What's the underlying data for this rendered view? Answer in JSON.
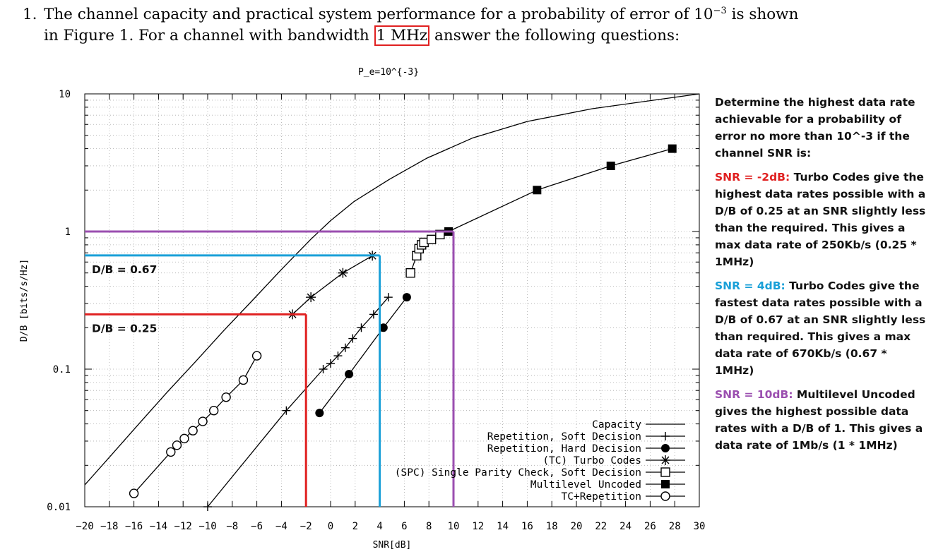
{
  "question": {
    "number": "1.",
    "line1_a": "The channel capacity and practical system performance for a probability of error of ",
    "power_base": "10",
    "power_exp": "−3",
    "line1_b": " is shown",
    "line2_a": "in Figure 1. For a channel with bandwidth ",
    "bandwidth": "1 MHz",
    "line2_b": " answer the following questions:"
  },
  "notes": {
    "intro": "Determine the highest data rate achievable for a probability of error no more than 10^-3 if the channel SNR is:",
    "n1_head": "SNR = -2dB:",
    "n1_body": " Turbo Codes give the highest data rates possible with a D/B of 0.25 at an SNR slightly less than the required. This gives a max data rate of 250Kb/s (0.25 * 1MHz)",
    "n2_head": "SNR = 4dB:",
    "n2_body": " Turbo Codes give the fastest data rates possible with a D/B of 0.67 at an SNR slightly less than required. This gives a max data rate of 670Kb/s (0.67 * 1MHz)",
    "n3_head": "SNR = 10dB:",
    "n3_body": " Multilevel Uncoded gives the highest possible data rates with a D/B of 1. This gives a data rate of 1Mb/s (1 * 1MHz)"
  },
  "colors": {
    "red": "#e02020",
    "blue": "#1aa0d8",
    "purple": "#9b4fb0",
    "ink": "#000000"
  },
  "chart_data": {
    "type": "line",
    "title": "P_e=10^{-3}",
    "xlabel": "SNR[dB]",
    "ylabel": "D/B [bits/s/Hz]",
    "xlim": [
      -20,
      30
    ],
    "ylim": [
      0.01,
      10
    ],
    "yscale": "log",
    "grid": true,
    "legend_position": "bottom-right",
    "x_ticks": [
      -20,
      -18,
      -16,
      -14,
      -12,
      -10,
      -8,
      -6,
      -4,
      -2,
      0,
      2,
      4,
      6,
      8,
      10,
      12,
      14,
      16,
      18,
      20,
      22,
      24,
      26,
      28,
      30
    ],
    "x_tick_labels": [
      "−20",
      "−18",
      "−16",
      "−14",
      "−12",
      "−10",
      "−8",
      "−6",
      "−4",
      "−2",
      "0",
      "2",
      "4",
      "6",
      "8",
      "10",
      "12",
      "14",
      "16",
      "18",
      "20",
      "22",
      "24",
      "26",
      "28",
      "30"
    ],
    "y_ticks": [
      0.01,
      0.1,
      1,
      10
    ],
    "y_tick_labels": [
      "0.01",
      "0.1",
      "1",
      "10"
    ],
    "series": [
      {
        "name": "Capacity",
        "marker": "none",
        "x": [
          -20,
          -17.8,
          -15.6,
          -13.3,
          -11.0,
          -8.7,
          -6.3,
          -4.0,
          -1.6,
          0,
          1.9,
          4.8,
          7.8,
          11.6,
          16.0,
          21.3,
          30.0
        ],
        "y": [
          0.0144,
          0.024,
          0.04,
          0.068,
          0.113,
          0.19,
          0.32,
          0.53,
          0.88,
          1.2,
          1.65,
          2.4,
          3.4,
          4.8,
          6.3,
          7.8,
          10.0
        ]
      },
      {
        "name": "Repetition, Soft Decision",
        "marker": "plus",
        "x": [
          -10.0,
          -3.6,
          -0.6,
          0,
          0.6,
          1.2,
          1.8,
          2.5,
          3.5,
          4.7
        ],
        "y": [
          0.01,
          0.05,
          0.1,
          0.11,
          0.125,
          0.143,
          0.167,
          0.2,
          0.25,
          0.333
        ]
      },
      {
        "name": "Repetition, Hard Decision",
        "marker": "filled-circle",
        "x": [
          -0.9,
          1.5,
          4.3,
          6.2
        ],
        "y": [
          0.048,
          0.092,
          0.2,
          0.333
        ]
      },
      {
        "name": "(TC) Turbo Codes",
        "marker": "star",
        "x": [
          -3.1,
          -1.6,
          1.0,
          3.4
        ],
        "y": [
          0.25,
          0.333,
          0.5,
          0.667
        ]
      },
      {
        "name": "(SPC) Single Parity Check, Soft Decision",
        "marker": "open-square",
        "x": [
          6.5,
          7.0,
          7.2,
          7.4,
          7.6,
          8.2,
          8.9
        ],
        "y": [
          0.5,
          0.667,
          0.75,
          0.8,
          0.833,
          0.875,
          0.95
        ]
      },
      {
        "name": "Multilevel Uncoded",
        "marker": "filled-square",
        "x": [
          9.6,
          16.8,
          22.8,
          27.8
        ],
        "y": [
          1,
          2,
          3,
          4
        ]
      },
      {
        "name": "TC+Repetition",
        "marker": "open-circle",
        "x": [
          -16.0,
          -13.0,
          -12.5,
          -11.9,
          -11.2,
          -10.4,
          -9.5,
          -8.5,
          -7.1,
          -6.0
        ],
        "y": [
          0.0125,
          0.025,
          0.028,
          0.0313,
          0.0357,
          0.0417,
          0.05,
          0.0625,
          0.0833,
          0.125
        ]
      }
    ],
    "annotations": [
      {
        "label": "D/B = 0.25",
        "color": "red",
        "snr": -2,
        "db": 0.25
      },
      {
        "label": "D/B = 0.67",
        "color": "blue",
        "snr": 4,
        "db": 0.67
      },
      {
        "label": "",
        "color": "purple",
        "snr": 10,
        "db": 1
      }
    ]
  }
}
